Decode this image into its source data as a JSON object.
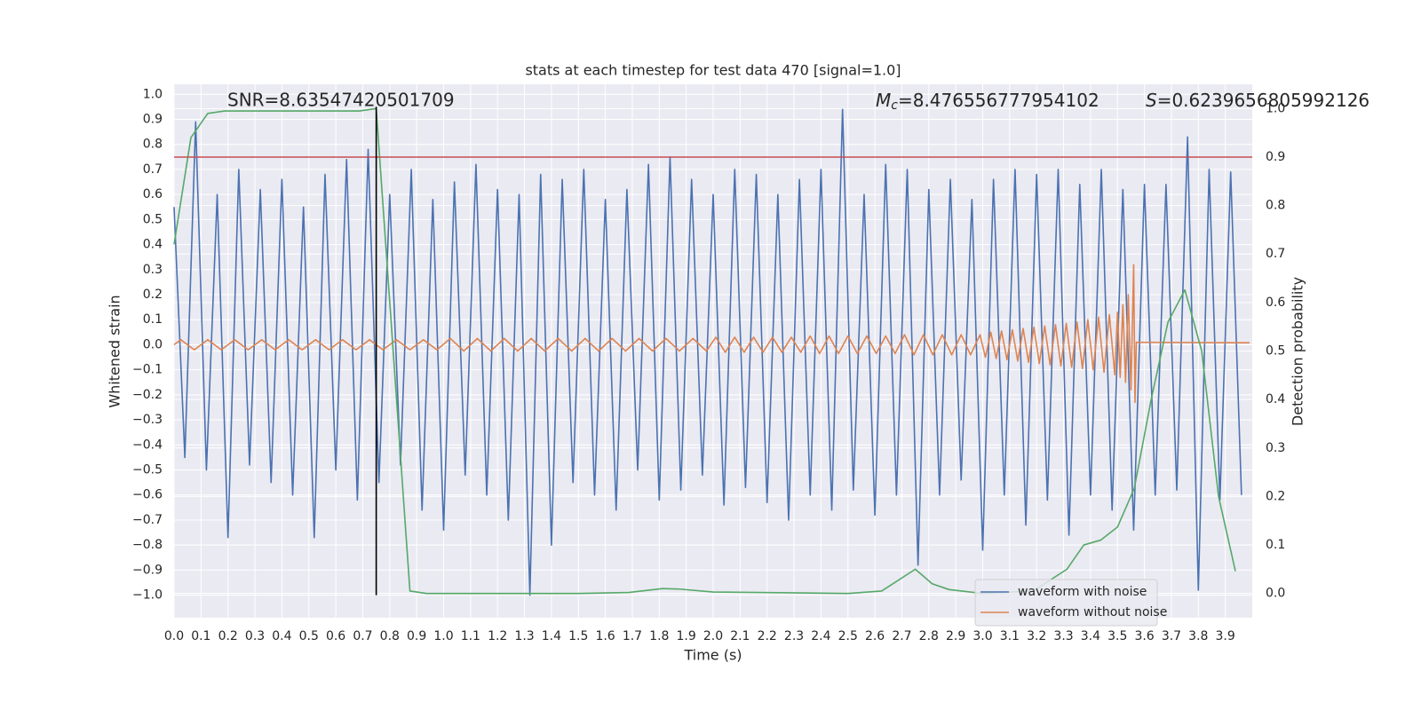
{
  "chart_data": {
    "type": "line",
    "title": "stats at each timestep for test data 470 [signal=1.0]",
    "xlabel": "Time (s)",
    "ylabel": "Whitened strain",
    "y2label": "Detection probability",
    "xlim": [
      0,
      4.0
    ],
    "ylim": [
      -1.09,
      1.04
    ],
    "y2lim": [
      -0.05,
      1.05
    ],
    "xticks": [
      {
        "value": 0,
        "label": "0.0"
      },
      0.1,
      0.2,
      0.3,
      0.4,
      0.5,
      0.6,
      0.7,
      0.8,
      0.9,
      {
        "value": 1,
        "label": "1.0"
      },
      1.1,
      1.2,
      1.3,
      1.4,
      1.5,
      1.6,
      1.7,
      1.8,
      1.9,
      {
        "value": 2,
        "label": "2.0"
      },
      2.1,
      2.2,
      2.3,
      2.4,
      2.5,
      2.6,
      2.7,
      2.8,
      2.9,
      {
        "value": 3,
        "label": "3.0"
      },
      3.1,
      3.2,
      3.3,
      3.4,
      3.5,
      3.6,
      3.7,
      3.8,
      3.9
    ],
    "yticks": [
      {
        "value": -1,
        "label": "−1.0"
      },
      {
        "value": -0.9,
        "label": "−0.9"
      },
      {
        "value": -0.8,
        "label": "−0.8"
      },
      {
        "value": -0.7,
        "label": "−0.7"
      },
      {
        "value": -0.6,
        "label": "−0.6"
      },
      {
        "value": -0.5,
        "label": "−0.5"
      },
      {
        "value": -0.4,
        "label": "−0.4"
      },
      {
        "value": -0.3,
        "label": "−0.3"
      },
      {
        "value": -0.2,
        "label": "−0.2"
      },
      {
        "value": -0.1,
        "label": "−0.1"
      },
      {
        "value": 0,
        "label": "0.0"
      },
      0.1,
      0.2,
      0.3,
      0.4,
      0.5,
      0.6,
      0.7,
      0.8,
      0.9,
      {
        "value": 1,
        "label": "1.0"
      }
    ],
    "y2ticks": [
      {
        "value": 0,
        "label": "0.0"
      },
      0.1,
      0.2,
      0.3,
      0.4,
      0.5,
      0.6,
      0.7,
      0.8,
      0.9,
      {
        "value": 1,
        "label": "1.0"
      }
    ],
    "grid": true,
    "legend": "lower right",
    "annotations": [
      {
        "text": "SNR=8.63547420501709"
      },
      {
        "symbol": "M",
        "subscript": "c",
        "text": "=8.476556777954102"
      },
      {
        "symbol": "S",
        "text": "=0.6239656805992126"
      }
    ],
    "hlines": [
      {
        "value": 0.9,
        "axis": "y2",
        "color": "#c44e52"
      }
    ],
    "vlines": [
      {
        "value": 0.75,
        "ymin": -1.0,
        "ymax": 0.95,
        "color": "#000000"
      }
    ],
    "series": [
      {
        "name": "waveform with noise",
        "color": "#4c72b0",
        "x": [
          0,
          0.04,
          0.08,
          0.12,
          0.16,
          0.2,
          0.24,
          0.28,
          0.32,
          0.36,
          0.4,
          0.44,
          0.48,
          0.52,
          0.56,
          0.6,
          0.64,
          0.68,
          0.72,
          0.76,
          0.8,
          0.84,
          0.88,
          0.92,
          0.96,
          1.0,
          1.04,
          1.08,
          1.12,
          1.16,
          1.2,
          1.24,
          1.28,
          1.32,
          1.36,
          1.4,
          1.44,
          1.48,
          1.52,
          1.56,
          1.6,
          1.64,
          1.68,
          1.72,
          1.76,
          1.8,
          1.84,
          1.88,
          1.92,
          1.96,
          2.0,
          2.04,
          2.08,
          2.12,
          2.16,
          2.2,
          2.24,
          2.28,
          2.32,
          2.36,
          2.4,
          2.44,
          2.48,
          2.52,
          2.56,
          2.6,
          2.64,
          2.68,
          2.72,
          2.76,
          2.8,
          2.84,
          2.88,
          2.92,
          2.96,
          3.0,
          3.04,
          3.08,
          3.12,
          3.16,
          3.2,
          3.24,
          3.28,
          3.32,
          3.36,
          3.4,
          3.44,
          3.48,
          3.52,
          3.56,
          3.6,
          3.64,
          3.68,
          3.72,
          3.76,
          3.8,
          3.84,
          3.88,
          3.92,
          3.96
        ],
        "values": [
          0.55,
          -0.45,
          0.89,
          -0.5,
          0.6,
          -0.77,
          0.7,
          -0.48,
          0.62,
          -0.55,
          0.66,
          -0.6,
          0.55,
          -0.77,
          0.68,
          -0.5,
          0.74,
          -0.62,
          0.78,
          -0.55,
          0.6,
          -0.48,
          0.7,
          -0.66,
          0.58,
          -0.74,
          0.65,
          -0.52,
          0.72,
          -0.6,
          0.62,
          -0.7,
          0.6,
          -1.0,
          0.68,
          -0.8,
          0.66,
          -0.55,
          0.7,
          -0.6,
          0.58,
          -0.66,
          0.62,
          -0.5,
          0.72,
          -0.62,
          0.75,
          -0.58,
          0.66,
          -0.52,
          0.6,
          -0.64,
          0.7,
          -0.57,
          0.68,
          -0.63,
          0.6,
          -0.7,
          0.66,
          -0.6,
          0.7,
          -0.66,
          0.94,
          -0.58,
          0.6,
          -0.68,
          0.72,
          -0.6,
          0.7,
          -0.88,
          0.62,
          -0.6,
          0.66,
          -0.54,
          0.58,
          -0.82,
          0.66,
          -0.6,
          0.7,
          -0.72,
          0.68,
          -0.62,
          0.7,
          -0.76,
          0.64,
          -0.6,
          0.7,
          -0.66,
          0.62,
          -0.74,
          0.64,
          -0.6,
          0.64,
          -0.58,
          0.83,
          -0.98,
          0.7,
          -0.62,
          0.69,
          -0.6
        ]
      },
      {
        "name": "waveform without noise",
        "color": "#dd8452",
        "x": [
          0,
          0.025,
          0.075,
          0.125,
          0.175,
          0.225,
          0.275,
          0.325,
          0.375,
          0.425,
          0.475,
          0.525,
          0.575,
          0.625,
          0.675,
          0.725,
          0.775,
          0.825,
          0.875,
          0.925,
          0.975,
          1.025,
          1.075,
          1.125,
          1.175,
          1.225,
          1.275,
          1.325,
          1.375,
          1.425,
          1.475,
          1.525,
          1.575,
          1.625,
          1.675,
          1.725,
          1.775,
          1.825,
          1.875,
          1.925,
          1.975,
          2.01,
          2.045,
          2.08,
          2.115,
          2.15,
          2.185,
          2.22,
          2.255,
          2.29,
          2.325,
          2.36,
          2.395,
          2.43,
          2.465,
          2.5,
          2.535,
          2.57,
          2.605,
          2.64,
          2.675,
          2.71,
          2.745,
          2.78,
          2.815,
          2.85,
          2.885,
          2.92,
          2.955,
          2.99,
          3.01,
          3.03,
          3.05,
          3.07,
          3.09,
          3.11,
          3.13,
          3.15,
          3.17,
          3.19,
          3.21,
          3.23,
          3.25,
          3.27,
          3.29,
          3.31,
          3.33,
          3.35,
          3.37,
          3.39,
          3.41,
          3.43,
          3.45,
          3.47,
          3.49,
          3.5,
          3.51,
          3.52,
          3.53,
          3.54,
          3.55,
          3.56,
          3.565,
          3.57,
          3.99
        ],
        "values": [
          0,
          0.02,
          -0.02,
          0.02,
          -0.02,
          0.02,
          -0.02,
          0.02,
          -0.02,
          0.02,
          -0.02,
          0.02,
          -0.02,
          0.02,
          -0.02,
          0.02,
          -0.02,
          0.02,
          -0.02,
          0.02,
          -0.02,
          0.025,
          -0.025,
          0.025,
          -0.025,
          0.025,
          -0.025,
          0.025,
          -0.025,
          0.025,
          -0.025,
          0.025,
          -0.025,
          0.025,
          -0.025,
          0.025,
          -0.025,
          0.025,
          -0.025,
          0.025,
          -0.025,
          0.03,
          -0.03,
          0.03,
          -0.03,
          0.03,
          -0.03,
          0.03,
          -0.03,
          0.03,
          -0.03,
          0.035,
          -0.035,
          0.035,
          -0.035,
          0.035,
          -0.035,
          0.035,
          -0.035,
          0.035,
          -0.035,
          0.04,
          -0.04,
          0.04,
          -0.04,
          0.04,
          -0.04,
          0.04,
          -0.04,
          0.04,
          -0.05,
          0.05,
          -0.055,
          0.055,
          -0.06,
          0.06,
          -0.065,
          0.065,
          -0.07,
          0.07,
          -0.075,
          0.075,
          -0.08,
          0.08,
          -0.085,
          0.085,
          -0.09,
          0.09,
          -0.095,
          0.1,
          -0.1,
          0.11,
          -0.11,
          0.12,
          -0.12,
          0.13,
          -0.13,
          0.16,
          -0.15,
          0.2,
          -0.18,
          0.32,
          -0.23,
          0.01,
          0.008
        ]
      },
      {
        "color": "#55a868",
        "axis": "y2",
        "x": [
          0,
          0.0625,
          0.125,
          0.1875,
          0.6875,
          0.75,
          0.875,
          0.9375,
          1.5,
          1.6875,
          1.8125,
          1.875,
          2.0,
          2.5,
          2.625,
          2.75,
          2.8125,
          2.875,
          3.0,
          3.1875,
          3.3125,
          3.375,
          3.4375,
          3.5,
          3.5625,
          3.625,
          3.6875,
          3.75,
          3.8125,
          3.875,
          3.9375
        ],
        "values": [
          0.72,
          0.94,
          0.99,
          0.995,
          0.995,
          1.0,
          0.005,
          0.0,
          0.0,
          0.002,
          0.01,
          0.009,
          0.003,
          0.0,
          0.005,
          0.05,
          0.02,
          0.008,
          0.0,
          0.005,
          0.05,
          0.1,
          0.11,
          0.137,
          0.217,
          0.4,
          0.56,
          0.626,
          0.5,
          0.2,
          0.046
        ]
      }
    ]
  }
}
